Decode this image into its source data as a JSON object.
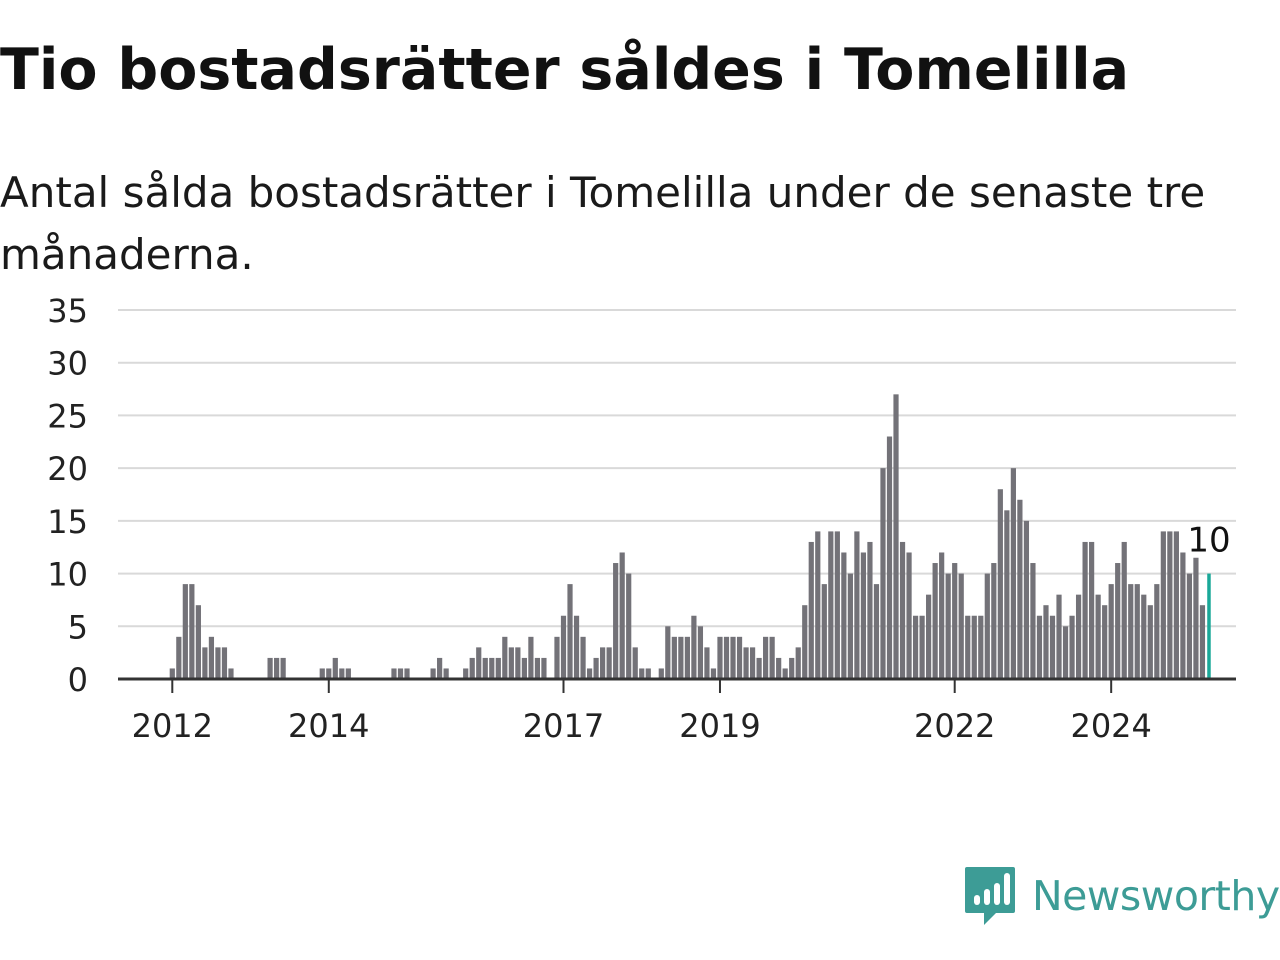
{
  "header": {
    "title": "Tio bostadsrätter såldes i Tomelilla",
    "subtitle": "Antal sålda bostadsrätter i Tomelilla under de senaste tre månaderna."
  },
  "brand": {
    "name": "Newsworthy",
    "icon": "bar-chart-speech-bubble-icon",
    "color": "#3d9c96"
  },
  "colors": {
    "bar": "#737278",
    "highlight": "#1aa898",
    "grid": "#d9d9d9",
    "axis": "#333333"
  },
  "chart_data": {
    "type": "bar",
    "title": "Tio bostadsrätter såldes i Tomelilla",
    "subtitle": "Antal sålda bostadsrätter i Tomelilla under de senaste tre månaderna.",
    "xlabel": "",
    "ylabel": "",
    "ylim": [
      0,
      35
    ],
    "yticks": [
      0,
      5,
      10,
      15,
      20,
      25,
      30,
      35
    ],
    "xticks": [
      "2012",
      "2014",
      "2017",
      "2019",
      "2022",
      "2024"
    ],
    "grid": true,
    "start": "2011-06",
    "frequency": "monthly",
    "highlight_label": "10",
    "values": [
      0,
      0,
      0,
      0,
      0,
      0,
      0,
      1,
      4,
      9,
      9,
      7,
      3,
      4,
      3,
      3,
      1,
      0,
      0,
      0,
      0,
      0,
      2,
      2,
      2,
      0,
      0,
      0,
      0,
      0,
      1,
      1,
      2,
      1,
      1,
      0,
      0,
      0,
      0,
      0,
      0,
      1,
      1,
      1,
      0,
      0,
      0,
      1,
      2,
      1,
      0,
      0,
      1,
      2,
      3,
      2,
      2,
      2,
      4,
      3,
      3,
      2,
      4,
      2,
      2,
      0,
      4,
      6,
      9,
      6,
      4,
      1,
      2,
      3,
      3,
      11,
      12,
      10,
      3,
      1,
      1,
      0,
      1,
      5,
      4,
      4,
      4,
      6,
      5,
      3,
      1,
      4,
      4,
      4,
      4,
      3,
      3,
      2,
      4,
      4,
      2,
      1,
      2,
      3,
      7,
      13,
      14,
      9,
      14,
      14,
      12,
      10,
      14,
      12,
      13,
      9,
      20,
      23,
      27,
      13,
      12,
      6,
      6,
      8,
      11,
      12,
      10,
      11,
      10,
      6,
      6,
      6,
      10,
      11,
      18,
      16,
      20,
      17,
      15,
      11,
      6,
      7,
      6,
      8,
      5,
      6,
      8,
      13,
      13,
      8,
      7,
      9,
      11,
      13,
      9,
      9,
      8,
      7,
      9,
      14,
      14,
      14,
      12,
      10,
      11.5,
      7,
      10
    ]
  }
}
